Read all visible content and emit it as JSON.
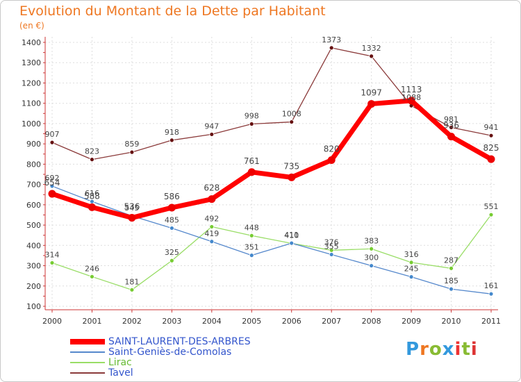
{
  "header": {
    "title": "Evolution du Montant de la Dette par Habitant",
    "subtitle": "(en €)"
  },
  "logo": {
    "text": "Proxiti",
    "colors": [
      "#3399dd",
      "#ee7722",
      "#88bb33",
      "#3399dd",
      "#ee3333",
      "#88bb33",
      "#dd3333"
    ]
  },
  "chart_data": {
    "type": "line",
    "title": "Evolution du Montant de la Dette par Habitant",
    "subtitle": "(en €)",
    "x": [
      "2000",
      "2001",
      "2002",
      "2003",
      "2004",
      "2005",
      "2006",
      "2007",
      "2008",
      "2009",
      "2010",
      "2011"
    ],
    "ylim": [
      100,
      1400
    ],
    "yticks": [
      100,
      200,
      300,
      400,
      500,
      600,
      700,
      800,
      900,
      1000,
      1100,
      1200,
      1300,
      1400
    ],
    "grid": true,
    "legend_position": "bottom",
    "series": [
      {
        "name": "SAINT-LAURENT-DES-ARBRES",
        "color": "#ff0000",
        "values": [
          654,
          588,
          536,
          586,
          628,
          761,
          735,
          820,
          1097,
          1113,
          936,
          825
        ]
      },
      {
        "name": "Saint-Geniès-de-Comolas",
        "color": "#5588cc",
        "values": [
          692,
          616,
          545,
          485,
          419,
          351,
          411,
          355,
          300,
          245,
          185,
          161
        ]
      },
      {
        "name": "Lirac",
        "color": "#99dd66",
        "values": [
          314,
          246,
          181,
          325,
          492,
          448,
          410,
          376,
          383,
          316,
          287,
          551
        ]
      },
      {
        "name": "Tavel",
        "color": "#8b3a3a",
        "values": [
          907,
          823,
          859,
          918,
          947,
          998,
          1008,
          1373,
          1332,
          1088,
          981,
          941
        ]
      }
    ]
  }
}
